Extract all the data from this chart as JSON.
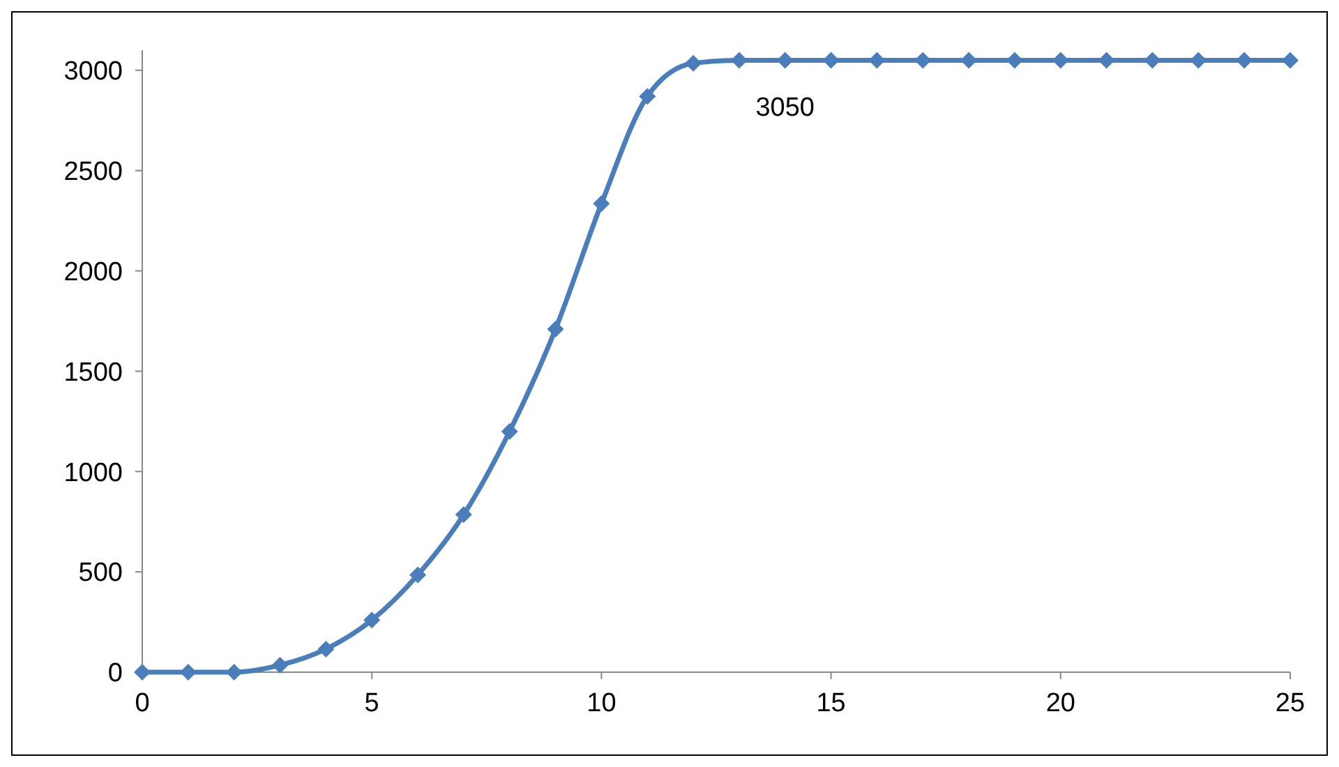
{
  "chart_data": {
    "type": "line",
    "x": [
      0,
      1,
      2,
      3,
      4,
      5,
      6,
      7,
      8,
      9,
      10,
      11,
      12,
      13,
      14,
      15,
      16,
      17,
      18,
      19,
      20,
      21,
      22,
      23,
      24,
      25
    ],
    "series": [
      {
        "color": "#4a7ebb",
        "values": [
          0,
          0,
          0,
          35,
          115,
          260,
          485,
          785,
          1200,
          1710,
          2335,
          2870,
          3035,
          3050,
          3050,
          3050,
          3050,
          3050,
          3050,
          3050,
          3050,
          3050,
          3050,
          3050,
          3050,
          3050
        ]
      }
    ],
    "xlim": [
      0,
      25
    ],
    "xticks": [
      0,
      5,
      10,
      15,
      20,
      25
    ],
    "ylim": [
      0,
      3100
    ],
    "yticks": [
      0,
      500,
      1000,
      1500,
      2000,
      2500,
      3000
    ],
    "marker": "diamond",
    "line_style": "solid",
    "grid": false,
    "annotations": [
      {
        "text": "3050",
        "x": 14,
        "y": 3050
      }
    ]
  }
}
